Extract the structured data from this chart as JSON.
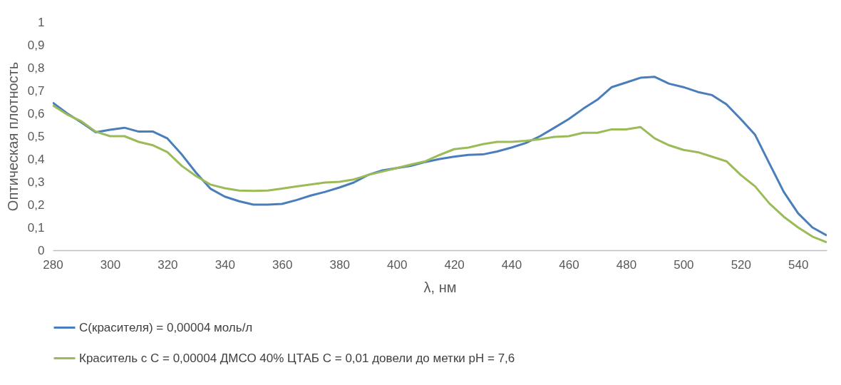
{
  "chart_data": {
    "type": "line",
    "xlabel": "λ, нм",
    "ylabel": "Оптическая плотность",
    "x": [
      280,
      285,
      290,
      295,
      300,
      305,
      310,
      315,
      320,
      325,
      330,
      335,
      340,
      345,
      350,
      355,
      360,
      365,
      370,
      375,
      380,
      385,
      390,
      395,
      400,
      405,
      410,
      415,
      420,
      425,
      430,
      435,
      440,
      445,
      450,
      455,
      460,
      465,
      470,
      475,
      480,
      485,
      490,
      495,
      500,
      505,
      510,
      515,
      520,
      525,
      530,
      535,
      540,
      545,
      550
    ],
    "series": [
      {
        "name": "С(красителя) = 0,00004 моль/л",
        "color": "#4a7ebb",
        "values": [
          0.647,
          0.6,
          0.56,
          0.517,
          0.528,
          0.537,
          0.52,
          0.52,
          0.49,
          0.42,
          0.34,
          0.27,
          0.235,
          0.215,
          0.2,
          0.2,
          0.203,
          0.22,
          0.24,
          0.256,
          0.275,
          0.297,
          0.33,
          0.35,
          0.36,
          0.37,
          0.387,
          0.4,
          0.41,
          0.418,
          0.42,
          0.433,
          0.45,
          0.47,
          0.5,
          0.537,
          0.575,
          0.62,
          0.66,
          0.715,
          0.735,
          0.756,
          0.76,
          0.73,
          0.715,
          0.694,
          0.68,
          0.64,
          0.575,
          0.506,
          0.38,
          0.256,
          0.162,
          0.1,
          0.065
        ]
      },
      {
        "name": "Краситель с С = 0,00004 ДМСО 40% ЦТАБ С = 0,01 довели до метки pH = 7,6",
        "color": "#9bbb59",
        "values": [
          0.635,
          0.595,
          0.565,
          0.52,
          0.5,
          0.5,
          0.475,
          0.46,
          0.43,
          0.37,
          0.325,
          0.288,
          0.272,
          0.262,
          0.26,
          0.262,
          0.27,
          0.28,
          0.288,
          0.297,
          0.3,
          0.31,
          0.33,
          0.345,
          0.36,
          0.376,
          0.39,
          0.418,
          0.443,
          0.45,
          0.465,
          0.475,
          0.475,
          0.48,
          0.487,
          0.497,
          0.5,
          0.515,
          0.515,
          0.53,
          0.53,
          0.54,
          0.49,
          0.46,
          0.44,
          0.43,
          0.41,
          0.39,
          0.33,
          0.28,
          0.205,
          0.147,
          0.1,
          0.06,
          0.035
        ]
      }
    ],
    "xlim": [
      280,
      550
    ],
    "xticks": [
      280,
      300,
      320,
      340,
      360,
      380,
      400,
      420,
      440,
      460,
      480,
      500,
      520,
      540
    ],
    "ylim": [
      0,
      1
    ],
    "yticks": [
      0,
      {
        "value": 0.1,
        "label": "0,1"
      },
      {
        "value": 0.2,
        "label": "0,2"
      },
      {
        "value": 0.3,
        "label": "0,3"
      },
      {
        "value": 0.4,
        "label": "0,4"
      },
      {
        "value": 0.5,
        "label": "0,5"
      },
      {
        "value": 0.6,
        "label": "0,6"
      },
      {
        "value": 0.7,
        "label": "0,7"
      },
      {
        "value": 0.8,
        "label": "0,8"
      },
      {
        "value": 0.9,
        "label": "0,9"
      },
      1
    ],
    "grid": false,
    "legend": "bottom",
    "line_style": "solid",
    "marker": "none"
  }
}
